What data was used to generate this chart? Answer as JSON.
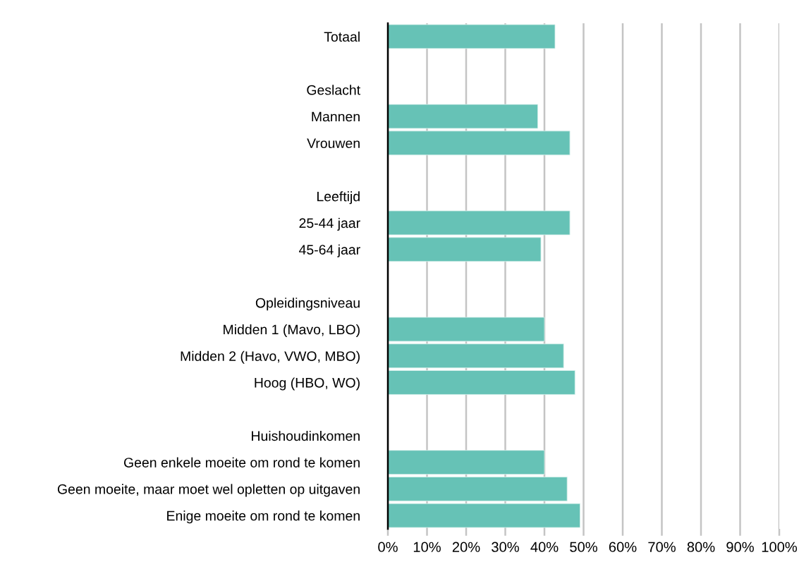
{
  "chart_data": {
    "type": "bar",
    "orientation": "horizontal",
    "categories": [
      "Totaal",
      null,
      "Geslacht",
      "Mannen",
      "Vrouwen",
      null,
      "Leeftijd",
      "25-44 jaar",
      "45-64 jaar",
      null,
      "Opleidingsniveau",
      "Midden 1 (Mavo, LBO)",
      "Midden 2 (Havo, VWO, MBO)",
      "Hoog (HBO, WO)",
      null,
      "Huishoudinkomen",
      "Geen enkele moeite om rond te komen",
      "Geen moeite, maar moet wel opletten op uitgaven",
      "Enige moeite om rond te komen"
    ],
    "values": [
      42.7,
      null,
      null,
      38.3,
      46.5,
      null,
      null,
      46.5,
      39.1,
      null,
      null,
      40.0,
      44.9,
      47.8,
      null,
      null,
      40.0,
      45.8,
      49.1
    ],
    "color": "#66c2b6",
    "xlim": [
      0,
      100
    ],
    "xticks": [
      {
        "value": 0,
        "label": "0%"
      },
      {
        "value": 10,
        "label": "10%"
      },
      {
        "value": 20,
        "label": "20%"
      },
      {
        "value": 30,
        "label": "30%"
      },
      {
        "value": 40,
        "label": "40%"
      },
      {
        "value": 50,
        "label": "50%"
      },
      {
        "value": 60,
        "label": "60%"
      },
      {
        "value": 70,
        "label": "70%"
      },
      {
        "value": 80,
        "label": "80%"
      },
      {
        "value": 90,
        "label": "90%"
      },
      {
        "value": 100,
        "label": "100%"
      }
    ],
    "grid": "x"
  }
}
